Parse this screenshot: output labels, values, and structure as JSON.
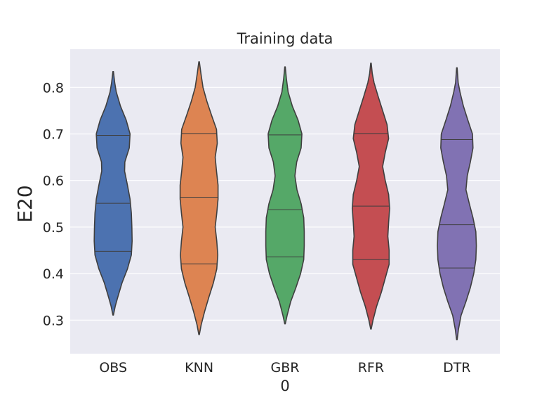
{
  "chart_data": {
    "type": "violin",
    "title": "Training data",
    "xlabel": "0",
    "ylabel": "E20",
    "ylim": [
      0.228,
      0.882
    ],
    "yticks": [
      "0.3",
      "0.4",
      "0.5",
      "0.6",
      "0.7",
      "0.8"
    ],
    "grid": true,
    "categories": [
      "OBS",
      "KNN",
      "GBR",
      "RFR",
      "DTR"
    ],
    "series": [
      {
        "label": "OBS",
        "color": "#4c72b0",
        "min": 0.311,
        "max": 0.834,
        "quartiles": [
          0.448,
          0.551,
          0.697
        ],
        "profile": [
          [
            0.311,
            0.01
          ],
          [
            0.33,
            0.08
          ],
          [
            0.35,
            0.18
          ],
          [
            0.38,
            0.34
          ],
          [
            0.41,
            0.55
          ],
          [
            0.44,
            0.7
          ],
          [
            0.47,
            0.73
          ],
          [
            0.5,
            0.72
          ],
          [
            0.53,
            0.7
          ],
          [
            0.56,
            0.65
          ],
          [
            0.59,
            0.55
          ],
          [
            0.62,
            0.44
          ],
          [
            0.64,
            0.45
          ],
          [
            0.67,
            0.62
          ],
          [
            0.7,
            0.65
          ],
          [
            0.73,
            0.5
          ],
          [
            0.76,
            0.28
          ],
          [
            0.79,
            0.12
          ],
          [
            0.81,
            0.06
          ],
          [
            0.834,
            0.01
          ]
        ]
      },
      {
        "label": "KNN",
        "color": "#dd8452",
        "min": 0.269,
        "max": 0.855,
        "quartiles": [
          0.421,
          0.564,
          0.701
        ],
        "profile": [
          [
            0.269,
            0.01
          ],
          [
            0.29,
            0.08
          ],
          [
            0.32,
            0.22
          ],
          [
            0.35,
            0.38
          ],
          [
            0.38,
            0.55
          ],
          [
            0.41,
            0.68
          ],
          [
            0.44,
            0.72
          ],
          [
            0.47,
            0.68
          ],
          [
            0.5,
            0.62
          ],
          [
            0.53,
            0.68
          ],
          [
            0.56,
            0.73
          ],
          [
            0.59,
            0.73
          ],
          [
            0.62,
            0.67
          ],
          [
            0.65,
            0.62
          ],
          [
            0.68,
            0.7
          ],
          [
            0.71,
            0.67
          ],
          [
            0.74,
            0.48
          ],
          [
            0.77,
            0.3
          ],
          [
            0.8,
            0.15
          ],
          [
            0.83,
            0.07
          ],
          [
            0.855,
            0.01
          ]
        ]
      },
      {
        "label": "GBR",
        "color": "#55a868",
        "min": 0.292,
        "max": 0.844,
        "quartiles": [
          0.436,
          0.537,
          0.698
        ],
        "profile": [
          [
            0.292,
            0.01
          ],
          [
            0.31,
            0.08
          ],
          [
            0.34,
            0.22
          ],
          [
            0.37,
            0.42
          ],
          [
            0.4,
            0.6
          ],
          [
            0.43,
            0.72
          ],
          [
            0.46,
            0.74
          ],
          [
            0.49,
            0.74
          ],
          [
            0.52,
            0.72
          ],
          [
            0.55,
            0.62
          ],
          [
            0.58,
            0.46
          ],
          [
            0.61,
            0.38
          ],
          [
            0.64,
            0.45
          ],
          [
            0.67,
            0.62
          ],
          [
            0.7,
            0.65
          ],
          [
            0.73,
            0.5
          ],
          [
            0.76,
            0.28
          ],
          [
            0.79,
            0.12
          ],
          [
            0.82,
            0.05
          ],
          [
            0.844,
            0.01
          ]
        ]
      },
      {
        "label": "RFR",
        "color": "#c44e52",
        "min": 0.281,
        "max": 0.852,
        "quartiles": [
          0.43,
          0.545,
          0.701
        ],
        "profile": [
          [
            0.281,
            0.01
          ],
          [
            0.3,
            0.08
          ],
          [
            0.33,
            0.22
          ],
          [
            0.36,
            0.4
          ],
          [
            0.39,
            0.55
          ],
          [
            0.42,
            0.7
          ],
          [
            0.45,
            0.7
          ],
          [
            0.48,
            0.65
          ],
          [
            0.51,
            0.68
          ],
          [
            0.54,
            0.72
          ],
          [
            0.57,
            0.68
          ],
          [
            0.6,
            0.55
          ],
          [
            0.63,
            0.45
          ],
          [
            0.66,
            0.55
          ],
          [
            0.69,
            0.68
          ],
          [
            0.72,
            0.62
          ],
          [
            0.75,
            0.45
          ],
          [
            0.78,
            0.28
          ],
          [
            0.81,
            0.12
          ],
          [
            0.83,
            0.05
          ],
          [
            0.852,
            0.01
          ]
        ]
      },
      {
        "label": "DTR",
        "color": "#8172b3",
        "min": 0.258,
        "max": 0.842,
        "quartiles": [
          0.412,
          0.505,
          0.688
        ],
        "profile": [
          [
            0.258,
            0.01
          ],
          [
            0.28,
            0.06
          ],
          [
            0.31,
            0.16
          ],
          [
            0.34,
            0.35
          ],
          [
            0.37,
            0.52
          ],
          [
            0.4,
            0.65
          ],
          [
            0.43,
            0.73
          ],
          [
            0.46,
            0.75
          ],
          [
            0.49,
            0.73
          ],
          [
            0.52,
            0.62
          ],
          [
            0.55,
            0.48
          ],
          [
            0.58,
            0.35
          ],
          [
            0.61,
            0.4
          ],
          [
            0.64,
            0.52
          ],
          [
            0.67,
            0.62
          ],
          [
            0.7,
            0.6
          ],
          [
            0.73,
            0.42
          ],
          [
            0.76,
            0.25
          ],
          [
            0.79,
            0.12
          ],
          [
            0.81,
            0.05
          ],
          [
            0.842,
            0.01
          ]
        ]
      }
    ]
  }
}
